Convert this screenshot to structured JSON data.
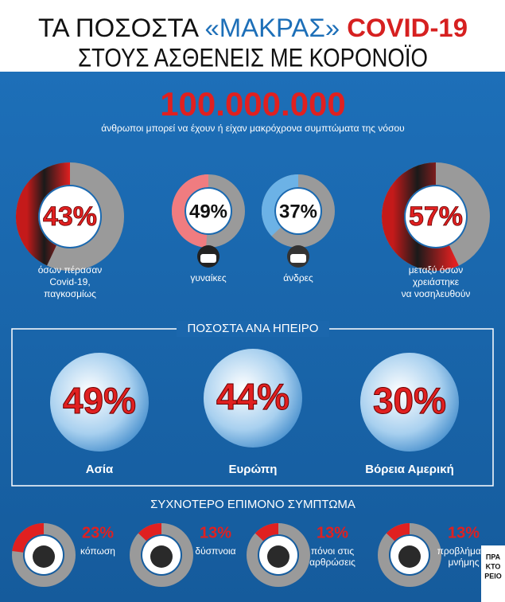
{
  "header": {
    "title_parts": [
      "ΤΑ ΠΟΣΟΣΤΑ",
      "«ΜΑΚΡΑΣ»",
      "COVID-19"
    ],
    "title_line2": "ΣΤΟΥΣ  ΑΣΘΕΝΕΙΣ ΜΕ ΚΟΡΟΝΟΪΟ"
  },
  "headline": {
    "number": "100.000.000",
    "text": "άνθρωποι μπορεί να έχουν ή είχαν μακρόχρονα συμπτώματα της νόσου"
  },
  "donuts": [
    {
      "value": 43,
      "label": "43%",
      "caption": [
        "όσων πέρασαν",
        "Covid-19,",
        "παγκοσμίως"
      ]
    },
    {
      "value": 49,
      "label": "49%",
      "caption": [
        "γυναίκες"
      ]
    },
    {
      "value": 37,
      "label": "37%",
      "caption": [
        "άνδρες"
      ]
    },
    {
      "value": 57,
      "label": "57%",
      "caption": [
        "μεταξύ όσων",
        "χρειάστηκε",
        "να νοσηλευθούν"
      ]
    }
  ],
  "continents": {
    "heading": "ΠΟΣΟΣΤΑ ΑΝΑ ΗΠΕΙΡΟ",
    "items": [
      {
        "value": 49,
        "label": "49%",
        "name": "Ασία"
      },
      {
        "value": 44,
        "label": "44%",
        "name": "Ευρώπη"
      },
      {
        "value": 30,
        "label": "30%",
        "name": "Βόρεια Αμερική"
      }
    ]
  },
  "symptoms": {
    "heading": "ΣΥΧΝΟΤΕΡΟ ΕΠΙΜΟΝΟ ΣΥΜΠΤΩΜΑ",
    "items": [
      {
        "value": 23,
        "label": "23%",
        "text": [
          "κόπωση"
        ]
      },
      {
        "value": 13,
        "label": "13%",
        "text": [
          "δύσπνοια"
        ]
      },
      {
        "value": 13,
        "label": "13%",
        "text": [
          "πόνοι στις",
          "αρθρώσεις"
        ]
      },
      {
        "value": 13,
        "label": "13%",
        "text": [
          "προβλήματα",
          "μνήμης"
        ]
      }
    ]
  },
  "logo": [
    "ΠΡΑ",
    "ΚΤΟ",
    "ΡΕΙΟ"
  ]
}
